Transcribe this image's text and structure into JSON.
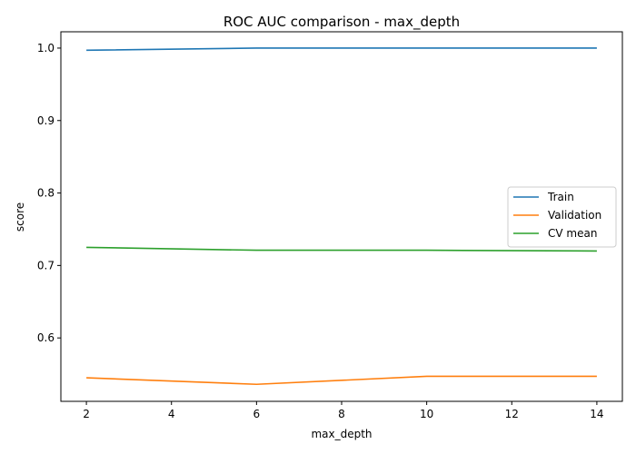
{
  "chart_data": {
    "type": "line",
    "title": "ROC AUC comparison - max_depth",
    "xlabel": "max_depth",
    "ylabel": "score",
    "x": [
      2,
      6,
      10,
      14
    ],
    "xlim": [
      1.4,
      14.6
    ],
    "ylim": [
      0.5125,
      1.0225
    ],
    "xticks": [
      2,
      4,
      6,
      8,
      10,
      12,
      14
    ],
    "yticks": [
      0.6,
      0.7,
      0.8,
      0.9,
      1.0
    ],
    "ytick_labels": [
      "0.6",
      "0.7",
      "0.8",
      "0.9",
      "1.0"
    ],
    "grid": false,
    "legend_position": "center-right",
    "series": [
      {
        "name": "Train",
        "color": "#1f77b4",
        "values": [
          0.997,
          1.0,
          1.0,
          1.0
        ]
      },
      {
        "name": "Validation",
        "color": "#ff7f0e",
        "values": [
          0.545,
          0.536,
          0.547,
          0.547
        ]
      },
      {
        "name": "CV mean",
        "color": "#2ca02c",
        "values": [
          0.725,
          0.721,
          0.721,
          0.72
        ]
      }
    ]
  }
}
